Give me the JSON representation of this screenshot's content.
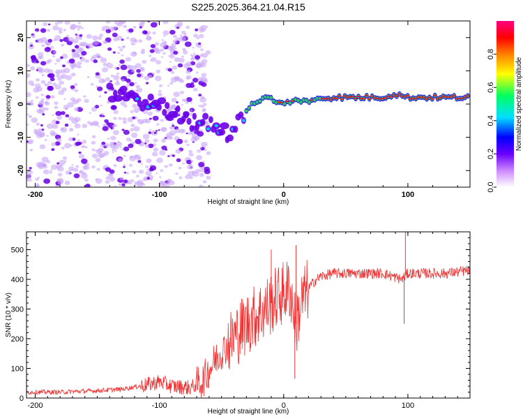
{
  "figure_title": "S225.2025.364.21.04.R15",
  "colors": {
    "snr_line": "#f03030",
    "ridge_core": "#e02020",
    "ridge_mid": "#30d060",
    "ridge_edge": "#2020e0",
    "scatter_dark": "#6a00e8",
    "scatter_light": "#caa8f8"
  },
  "chart_data": [
    {
      "type": "heatmap",
      "name": "spectrogram",
      "title": "",
      "xlabel": "Height of straight line (km)",
      "ylabel": "Frequency (Hz)",
      "xlim": [
        -207,
        150
      ],
      "ylim": [
        -25,
        25
      ],
      "x_ticks": [
        -200,
        -100,
        0,
        100
      ],
      "x_tick_labels": [
        "-200",
        "-100",
        "0",
        "100"
      ],
      "y_ticks": [
        -20,
        -10,
        0,
        10,
        20
      ],
      "y_tick_labels": [
        "-20",
        "-10",
        "0",
        "10",
        "20"
      ],
      "ridge": {
        "x": [
          -135,
          -120,
          -105,
          -90,
          -75,
          -60,
          -50,
          -40,
          -33,
          -25,
          -15,
          -5,
          0,
          10,
          20,
          40,
          60,
          80,
          90,
          100,
          120,
          150
        ],
        "y": [
          3,
          2,
          0,
          -3,
          -5,
          -6,
          -8,
          -9,
          -3,
          0,
          2,
          1,
          0,
          1,
          1,
          2,
          2,
          2,
          3,
          2,
          2,
          2
        ],
        "core_from_x": 35
      },
      "colorbar": {
        "label": "Normalized spectral amplitude",
        "range": [
          0.0,
          1.0
        ],
        "ticks": [
          0.0,
          0.2,
          0.4,
          0.6,
          0.8
        ],
        "tick_labels": [
          "0.0",
          "0.2",
          "0.4",
          "0.6",
          "0.8"
        ],
        "stops": [
          "#ffffff",
          "#cc88ff",
          "#6a00ff",
          "#0000ff",
          "#00e0ff",
          "#00ff60",
          "#ffff00",
          "#ff8000",
          "#ff0000",
          "#ff0080"
        ]
      }
    },
    {
      "type": "line",
      "name": "snr",
      "title": "",
      "xlabel": "Height of straight line (km)",
      "ylabel": "SNR (10 * v/v)",
      "xlim": [
        -207,
        150
      ],
      "ylim": [
        0,
        560
      ],
      "x_ticks": [
        -200,
        -100,
        0,
        100
      ],
      "x_tick_labels": [
        "-200",
        "-100",
        "0",
        "100"
      ],
      "y_ticks": [
        0,
        100,
        200,
        300,
        400,
        500
      ],
      "y_tick_labels": [
        "0",
        "100",
        "200",
        "300",
        "400",
        "500"
      ],
      "series": [
        {
          "name": "SNR",
          "x": [
            -207,
            -180,
            -150,
            -130,
            -110,
            -100,
            -90,
            -75,
            -65,
            -55,
            -45,
            -35,
            -25,
            -15,
            -5,
            5,
            10,
            15,
            20,
            25,
            30,
            40,
            60,
            80,
            95,
            100,
            110,
            130,
            150
          ],
          "y": [
            20,
            20,
            25,
            30,
            45,
            55,
            40,
            35,
            60,
            130,
            180,
            230,
            270,
            300,
            340,
            370,
            250,
            330,
            370,
            395,
            410,
            420,
            420,
            420,
            400,
            420,
            420,
            420,
            430
          ]
        }
      ],
      "spikes": [
        {
          "x": -10,
          "y": 500
        },
        {
          "x": 10,
          "y": 515
        },
        {
          "x": 98,
          "y": 560
        },
        {
          "x": 97,
          "y": 250
        },
        {
          "x": 9,
          "y": 65
        }
      ]
    }
  ]
}
